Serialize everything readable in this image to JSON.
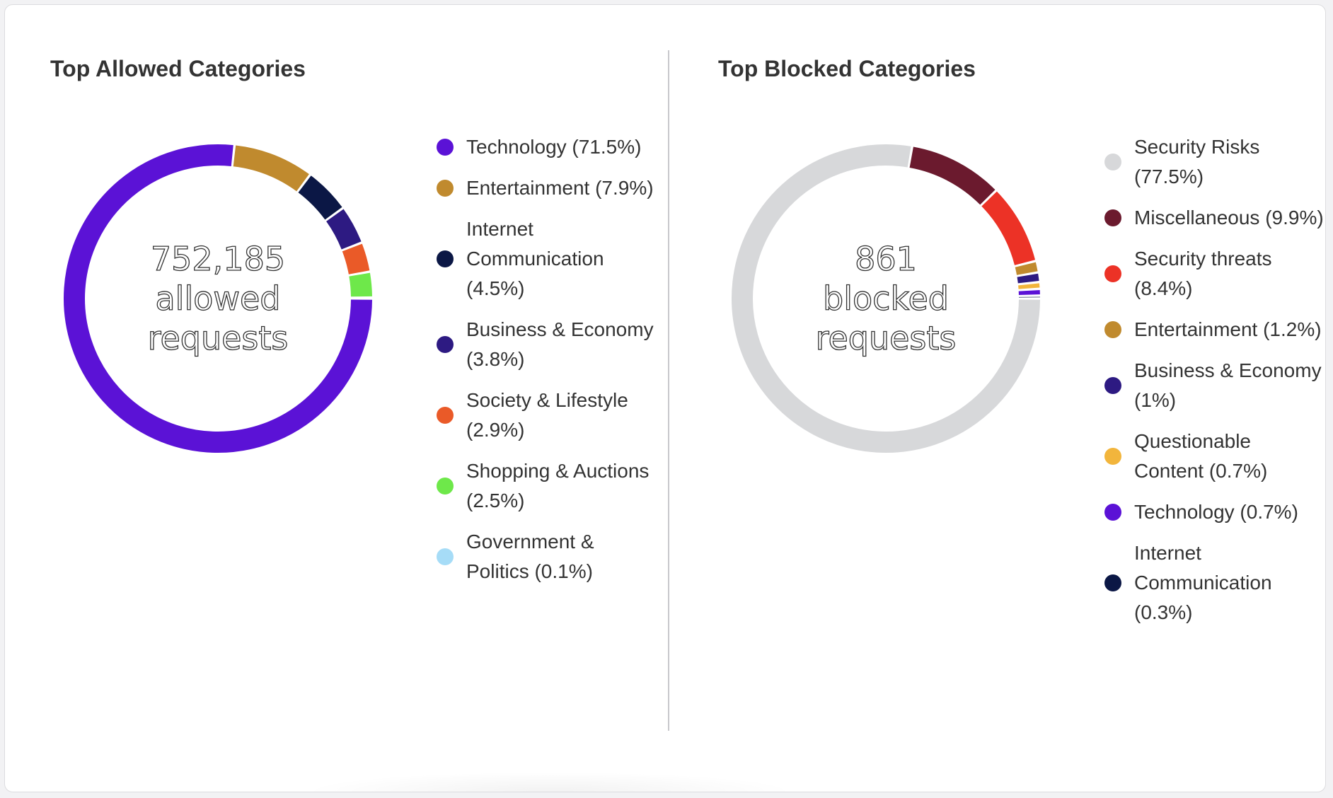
{
  "chart_data": [
    {
      "type": "pie",
      "title": "Top Allowed Categories",
      "center_value": "752,185",
      "center_label_1": "allowed",
      "center_label_2": "requests",
      "categories": [
        "Technology",
        "Entertainment",
        "Internet Communication",
        "Business & Economy",
        "Society & Lifestyle",
        "Shopping & Auctions",
        "Government & Politics"
      ],
      "values": [
        71.5,
        7.9,
        4.5,
        3.8,
        2.9,
        2.5,
        0.1
      ],
      "colors": [
        "#5b12d6",
        "#c08a2e",
        "#0b1745",
        "#2d1a82",
        "#ea5a28",
        "#6ee84a",
        "#a6dcf7"
      ],
      "legend": [
        {
          "label": "Technology (71.5%)",
          "color": "#5b12d6"
        },
        {
          "label": "Entertainment (7.9%)",
          "color": "#c08a2e"
        },
        {
          "label": "Internet Communication (4.5%)",
          "color": "#0b1745"
        },
        {
          "label": "Business & Economy (3.8%)",
          "color": "#2d1a82"
        },
        {
          "label": "Society & Lifestyle (2.9%)",
          "color": "#ea5a28"
        },
        {
          "label": "Shopping & Auctions (2.5%)",
          "color": "#6ee84a"
        },
        {
          "label": "Government & Politics (0.1%)",
          "color": "#a6dcf7"
        }
      ]
    },
    {
      "type": "pie",
      "title": "Top Blocked Categories",
      "center_value": "861",
      "center_label_1": "blocked",
      "center_label_2": "requests",
      "categories": [
        "Security Risks",
        "Miscellaneous",
        "Security threats",
        "Entertainment",
        "Business & Economy",
        "Questionable Content",
        "Technology",
        "Internet Communication"
      ],
      "values": [
        77.5,
        9.9,
        8.4,
        1.2,
        1.0,
        0.7,
        0.7,
        0.3
      ],
      "colors": [
        "#d7d8da",
        "#6b1a2e",
        "#ec3226",
        "#c08a2e",
        "#2d1a82",
        "#f2b53c",
        "#5b12d6",
        "#0b1745"
      ],
      "legend": [
        {
          "label": "Security Risks (77.5%)",
          "color": "#d7d8da"
        },
        {
          "label": "Miscellaneous (9.9%)",
          "color": "#6b1a2e"
        },
        {
          "label": "Security threats (8.4%)",
          "color": "#ec3226"
        },
        {
          "label": "Entertainment (1.2%)",
          "color": "#c08a2e"
        },
        {
          "label": "Business & Economy (1%)",
          "color": "#2d1a82"
        },
        {
          "label": "Questionable Content (0.7%)",
          "color": "#f2b53c"
        },
        {
          "label": "Technology (0.7%)",
          "color": "#5b12d6"
        },
        {
          "label": "Internet Communication (0.3%)",
          "color": "#0b1745"
        }
      ]
    }
  ]
}
